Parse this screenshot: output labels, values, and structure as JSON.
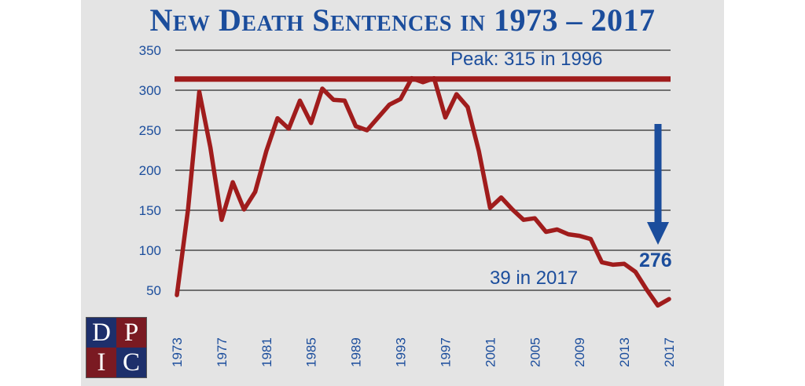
{
  "title": "New Death Sentences in 1973 – 2017",
  "logo": {
    "letters": [
      "D",
      "P",
      "I",
      "C"
    ]
  },
  "colors": {
    "line": "#a01c1c",
    "peak_line": "#a01c1c",
    "text": "#1b4d9c",
    "arrow": "#1b4d9c",
    "background": "#e4e4e4"
  },
  "chart_data": {
    "type": "line",
    "title": "New Death Sentences in 1973 – 2017",
    "xlabel": "",
    "ylabel": "",
    "ylim": [
      0,
      350
    ],
    "xlim": [
      1973,
      2017
    ],
    "yticks": [
      50,
      100,
      150,
      200,
      250,
      300,
      350
    ],
    "xticks": [
      1973,
      1977,
      1981,
      1985,
      1989,
      1993,
      1997,
      2001,
      2005,
      2009,
      2013,
      2017
    ],
    "grid": true,
    "series": [
      {
        "x": [
          1973,
          1974,
          1975,
          1976,
          1977,
          1978,
          1979,
          1980,
          1981,
          1982,
          1983,
          1984,
          1985,
          1986,
          1987,
          1988,
          1989,
          1990,
          1991,
          1992,
          1993,
          1994,
          1995,
          1996,
          1997,
          1998,
          1999,
          2000,
          2001,
          2002,
          2003,
          2004,
          2005,
          2006,
          2007,
          2008,
          2009,
          2010,
          2011,
          2012,
          2013,
          2014,
          2015,
          2016,
          2017
        ],
        "y": [
          44,
          151,
          298,
          228,
          138,
          185,
          151,
          173,
          224,
          265,
          252,
          287,
          259,
          302,
          288,
          287,
          255,
          250,
          266,
          282,
          289,
          315,
          310,
          315,
          266,
          295,
          279,
          224,
          153,
          166,
          151,
          138,
          140,
          123,
          126,
          120,
          118,
          114,
          85,
          82,
          83,
          73,
          51,
          31,
          39
        ]
      }
    ],
    "peak": {
      "value": 315,
      "label": "Peak: 315 in 1996"
    },
    "annotations": {
      "latest": "39 in 2017",
      "drop": "276"
    }
  }
}
